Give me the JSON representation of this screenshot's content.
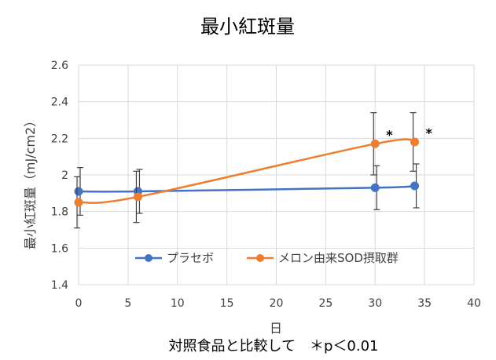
{
  "chart_data": {
    "type": "line",
    "title": "最小紅斑量",
    "xlabel": "日",
    "ylabel": "最小紅斑量（mJ/cm2）",
    "xlim": [
      0,
      40
    ],
    "ylim": [
      1.4,
      2.6
    ],
    "x_ticks": [
      0,
      5,
      10,
      15,
      20,
      25,
      30,
      35,
      40
    ],
    "x_tick_labels": [
      "0",
      "5",
      "10",
      "15",
      "20",
      "25",
      "30",
      "35",
      "40"
    ],
    "y_ticks": [
      1.4,
      1.6,
      1.8,
      2.0,
      2.2,
      2.4,
      2.6
    ],
    "y_tick_labels": [
      "1.4",
      "1.6",
      "1.8",
      "2",
      "2.2",
      "2.4",
      "2.6"
    ],
    "grid": true,
    "legend_position": "bottom-inside",
    "series": [
      {
        "name": "プラセボ",
        "color": "#4472C4",
        "x": [
          0,
          6,
          30,
          34
        ],
        "y": [
          1.91,
          1.91,
          1.93,
          1.94
        ],
        "error": [
          0.13,
          0.12,
          0.12,
          0.12
        ]
      },
      {
        "name": "メロン由来SOD摂取群",
        "color": "#ED7D31",
        "x": [
          0,
          6,
          30,
          34
        ],
        "y": [
          1.85,
          1.88,
          2.17,
          2.18
        ],
        "error": [
          0.14,
          0.14,
          0.17,
          0.16
        ]
      }
    ],
    "annotations": [
      {
        "text": "*",
        "x": 30
      },
      {
        "text": "*",
        "x": 34
      }
    ],
    "footnote": "対照食品と比較して　＊p＜0.01"
  }
}
